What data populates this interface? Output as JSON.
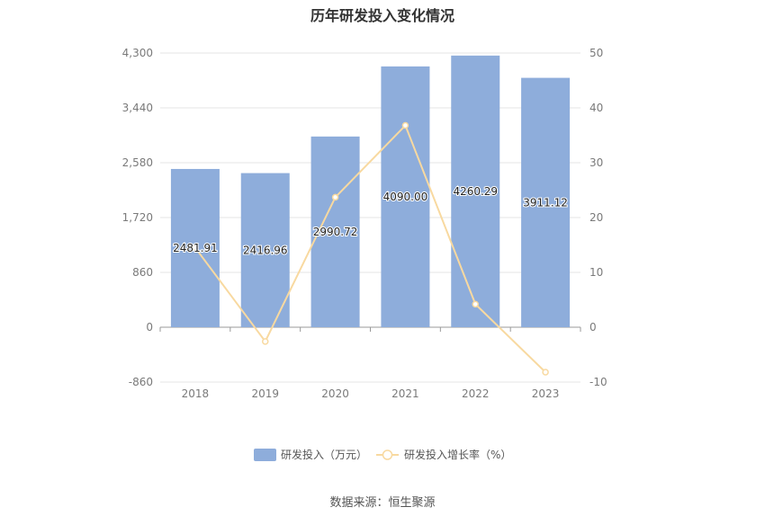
{
  "chart_data": {
    "type": "bar",
    "title": "历年研发投入变化情况",
    "categories": [
      "2018",
      "2019",
      "2020",
      "2021",
      "2022",
      "2023"
    ],
    "series": [
      {
        "name": "研发投入（万元）",
        "type": "bar",
        "axis": "left",
        "color": "#8eaddb",
        "values": [
          2481.91,
          2416.96,
          2990.72,
          4090.0,
          4260.29,
          3911.12
        ],
        "labels": [
          "2481.91",
          "2416.96",
          "2990.72",
          "4090.00",
          "4260.29",
          "3911.12"
        ]
      },
      {
        "name": "研发投入增长率（%）",
        "type": "line",
        "axis": "right",
        "color": "#f8d9a0",
        "values": [
          14.5,
          -2.6,
          23.7,
          36.8,
          4.2,
          -8.2
        ]
      }
    ],
    "left_axis": {
      "min": -860,
      "max": 4300,
      "ticks": [
        -860,
        0,
        860,
        1720,
        2580,
        3440,
        4300
      ],
      "tick_labels": [
        "-860",
        "0",
        "860",
        "1,720",
        "2,580",
        "3,440",
        "4,300"
      ]
    },
    "right_axis": {
      "min": -10,
      "max": 50,
      "ticks": [
        -10,
        0,
        10,
        20,
        30,
        40,
        50
      ],
      "tick_labels": [
        "-10",
        "0",
        "10",
        "20",
        "30",
        "40",
        "50"
      ]
    },
    "grid": true,
    "legend_position": "bottom",
    "source": "数据来源：恒生聚源"
  }
}
